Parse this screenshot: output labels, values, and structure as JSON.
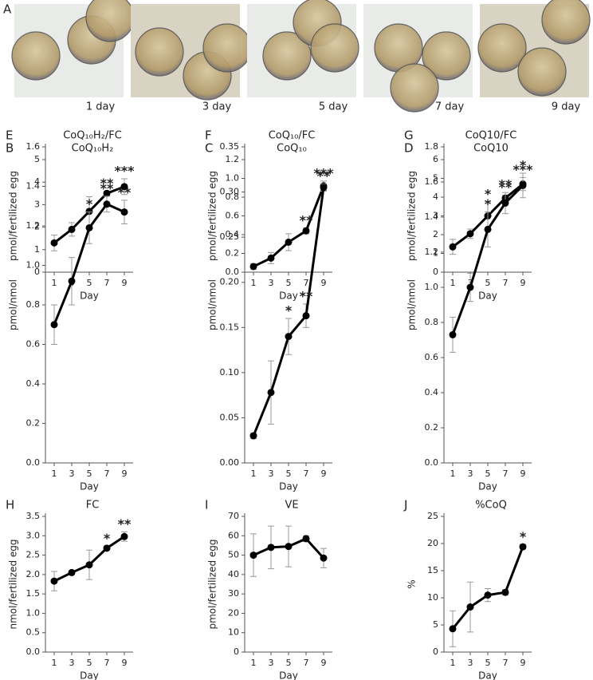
{
  "panel_a": {
    "label": "A",
    "captions": [
      "1 day",
      "3 day",
      "5 day",
      "7 day",
      "9 day"
    ]
  },
  "chart_data": [
    {
      "type": "line",
      "panel": "B",
      "title": "CoQ₁₀H₂",
      "y_label": "pmol/fertilized egg",
      "x_label": "Day",
      "categories": [
        "1",
        "3",
        "5",
        "7",
        "9"
      ],
      "values": [
        1.3,
        1.9,
        2.7,
        3.5,
        3.8
      ],
      "errors": [
        0.35,
        0.3,
        0.65,
        0.1,
        0.35
      ],
      "significance": [
        null,
        null,
        null,
        "**",
        "***"
      ],
      "color": "#000000",
      "ylim": [
        0,
        5
      ],
      "yticks": [
        0,
        1,
        2,
        3,
        4,
        5
      ]
    },
    {
      "type": "line",
      "panel": "C",
      "title": "CoQ₁₀",
      "y_label": "pmol/fertilized egg",
      "x_label": "Day",
      "categories": [
        "1",
        "3",
        "5",
        "7",
        "9"
      ],
      "values": [
        0.06,
        0.15,
        0.32,
        0.44,
        0.92
      ],
      "errors": [
        0.03,
        0.06,
        0.09,
        0.03,
        0.05
      ],
      "significance": [
        null,
        null,
        null,
        "**",
        "***"
      ],
      "color": "#000000",
      "ylim": [
        0,
        1.2
      ],
      "yticks": [
        {
          "value": 0,
          "label": "0.0"
        },
        0.2,
        0.4,
        0.6,
        0.8,
        {
          "value": 1,
          "label": "1.0"
        },
        1.2
      ]
    },
    {
      "type": "line",
      "panel": "D",
      "title": "CoQ10",
      "y_label": "pmol/fertilized egg",
      "x_label": "Day",
      "categories": [
        "1",
        "3",
        "5",
        "7",
        "9"
      ],
      "values": [
        1.35,
        2.05,
        3.0,
        3.95,
        4.7
      ],
      "errors": [
        0.4,
        0.25,
        0.75,
        0.15,
        0.35
      ],
      "significance": [
        null,
        null,
        "*",
        "**",
        "***"
      ],
      "color": "#000000",
      "ylim": [
        0,
        6
      ],
      "yticks": [
        0,
        1,
        2,
        3,
        4,
        5,
        6
      ]
    },
    {
      "type": "line",
      "panel": "E",
      "title": "CoQ₁₀H₂/FC",
      "y_label": "pmol/nmol",
      "x_label": "Day",
      "categories": [
        "1",
        "3",
        "5",
        "7",
        "9"
      ],
      "values": [
        0.7,
        0.92,
        1.19,
        1.31,
        1.27
      ],
      "errors": [
        0.1,
        0.12,
        0.08,
        0.04,
        0.06
      ],
      "significance": [
        null,
        null,
        "*",
        "**",
        "**"
      ],
      "color": "#000000",
      "ylim": [
        0,
        1.6
      ],
      "yticks": [
        {
          "value": 0,
          "label": "0.0"
        },
        0.2,
        0.4,
        0.6,
        0.8,
        {
          "value": 1,
          "label": "1.0"
        },
        1.2,
        1.4,
        1.6
      ]
    },
    {
      "type": "line",
      "panel": "F",
      "title": "CoQ₁₀/FC",
      "y_label": "pmol/nmol",
      "x_label": "Day",
      "categories": [
        "1",
        "3",
        "5",
        "7",
        "9"
      ],
      "values": [
        0.03,
        0.078,
        0.14,
        0.163,
        0.305
      ],
      "errors": [
        0.003,
        0.035,
        0.02,
        0.013,
        0.004
      ],
      "significance": [
        null,
        null,
        "*",
        "**",
        "**"
      ],
      "color": "#000000",
      "ylim": [
        0,
        0.35
      ],
      "yticks": [
        {
          "value": 0,
          "label": "0.00"
        },
        0.05,
        {
          "value": 0.1,
          "label": "0.10"
        },
        0.15,
        {
          "value": 0.2,
          "label": "0.20"
        },
        0.25,
        {
          "value": 0.3,
          "label": "0.30"
        },
        0.35
      ]
    },
    {
      "type": "line",
      "panel": "G",
      "title": "CoQ10/FC",
      "y_label": "pmol/nmol",
      "x_label": "Day",
      "categories": [
        "1",
        "3",
        "5",
        "7",
        "9"
      ],
      "values": [
        0.73,
        1.0,
        1.33,
        1.48,
        1.58
      ],
      "errors": [
        0.1,
        0.08,
        0.1,
        0.06,
        0.07
      ],
      "significance": [
        null,
        null,
        "*",
        "**",
        "*"
      ],
      "color": "#000000",
      "ylim": [
        0,
        1.8
      ],
      "yticks": [
        {
          "value": 0,
          "label": "0.0"
        },
        0.2,
        0.4,
        0.6,
        0.8,
        {
          "value": 1,
          "label": "1.0"
        },
        1.2,
        1.4,
        1.6,
        1.8
      ]
    },
    {
      "type": "line",
      "panel": "H",
      "title": "FC",
      "y_label": "nmol/fertilized egg",
      "x_label": "Day",
      "categories": [
        "1",
        "3",
        "5",
        "7",
        "9"
      ],
      "values": [
        1.83,
        2.05,
        2.25,
        2.68,
        2.98
      ],
      "errors": [
        0.25,
        0.05,
        0.38,
        0.05,
        0.12
      ],
      "significance": [
        null,
        null,
        null,
        "*",
        "**"
      ],
      "color": "#000000",
      "ylim": [
        0,
        3.5
      ],
      "yticks": [
        {
          "value": 0,
          "label": "0.0"
        },
        0.5,
        {
          "value": 1,
          "label": "1.0"
        },
        1.5,
        {
          "value": 2,
          "label": "2.0"
        },
        2.5,
        {
          "value": 3,
          "label": "3.0"
        },
        3.5
      ]
    },
    {
      "type": "line",
      "panel": "I",
      "title": "VE",
      "y_label": "pmol/fertilized egg",
      "x_label": "Day",
      "categories": [
        "1",
        "3",
        "5",
        "7",
        "9"
      ],
      "values": [
        50,
        54,
        54.5,
        58.5,
        48.5
      ],
      "errors": [
        11,
        11,
        10.5,
        1.5,
        5
      ],
      "color": "#000000",
      "ylim": [
        0,
        70
      ],
      "yticks": [
        0,
        10,
        20,
        30,
        40,
        50,
        60,
        70
      ]
    },
    {
      "type": "line",
      "panel": "J",
      "title": "%CoQ",
      "y_label": "%",
      "x_label": "Day",
      "categories": [
        "1",
        "3",
        "5",
        "7",
        "9"
      ],
      "values": [
        4.3,
        8.3,
        10.5,
        11,
        19.4
      ],
      "errors": [
        3.3,
        4.6,
        1.2,
        0.5,
        0.4
      ],
      "significance": [
        null,
        null,
        null,
        null,
        "*"
      ],
      "color": "#000000",
      "ylim": [
        0,
        25
      ],
      "yticks": [
        0,
        5,
        10,
        15,
        20,
        25
      ]
    }
  ]
}
